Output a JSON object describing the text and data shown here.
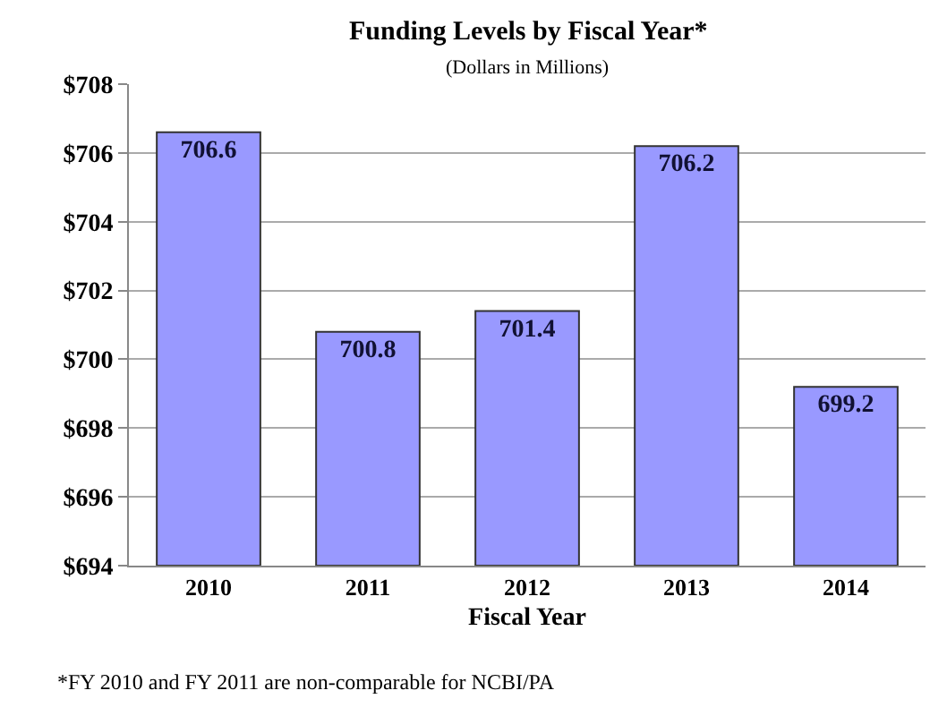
{
  "chart_data": {
    "type": "bar",
    "title": "Funding Levels by Fiscal Year*",
    "subtitle": "(Dollars in Millions)",
    "xlabel": "Fiscal Year",
    "categories": [
      "2010",
      "2011",
      "2012",
      "2013",
      "2014"
    ],
    "values": [
      706.6,
      700.8,
      701.4,
      706.2,
      699.2
    ],
    "color": "#9999ff",
    "ylim": [
      694,
      708
    ],
    "yticks": [
      {
        "value": 694,
        "label": "$694"
      },
      {
        "value": 696,
        "label": "$696"
      },
      {
        "value": 698,
        "label": "$698"
      },
      {
        "value": 700,
        "label": "$700"
      },
      {
        "value": 702,
        "label": "$702"
      },
      {
        "value": 704,
        "label": "$704"
      },
      {
        "value": 706,
        "label": "$706"
      },
      {
        "value": 708,
        "label": "$708"
      }
    ],
    "grid": "y",
    "data_labels": true,
    "annotations": [
      "*FY 2010 and FY 2011 are non-comparable for NCBI/PA"
    ]
  }
}
